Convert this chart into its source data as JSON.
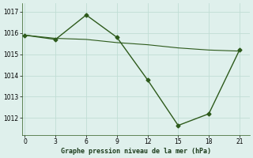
{
  "x": [
    0,
    3,
    6,
    9,
    12,
    15,
    18,
    21
  ],
  "y_main": [
    1015.9,
    1015.7,
    1016.85,
    1015.8,
    1013.8,
    1011.65,
    1012.2,
    1015.2
  ],
  "y_trend": [
    1015.9,
    1015.75,
    1015.7,
    1015.55,
    1015.45,
    1015.3,
    1015.2,
    1015.15
  ],
  "line_color": "#2d5a1b",
  "bg_color": "#dff0ec",
  "grid_color": "#c0ddd5",
  "xlabel": "Graphe pression niveau de la mer (hPa)",
  "xticks": [
    0,
    3,
    6,
    9,
    12,
    15,
    18,
    21
  ],
  "yticks": [
    1012,
    1013,
    1014,
    1015,
    1016,
    1017
  ],
  "ylim": [
    1011.2,
    1017.4
  ],
  "xlim": [
    -0.3,
    22.0
  ]
}
